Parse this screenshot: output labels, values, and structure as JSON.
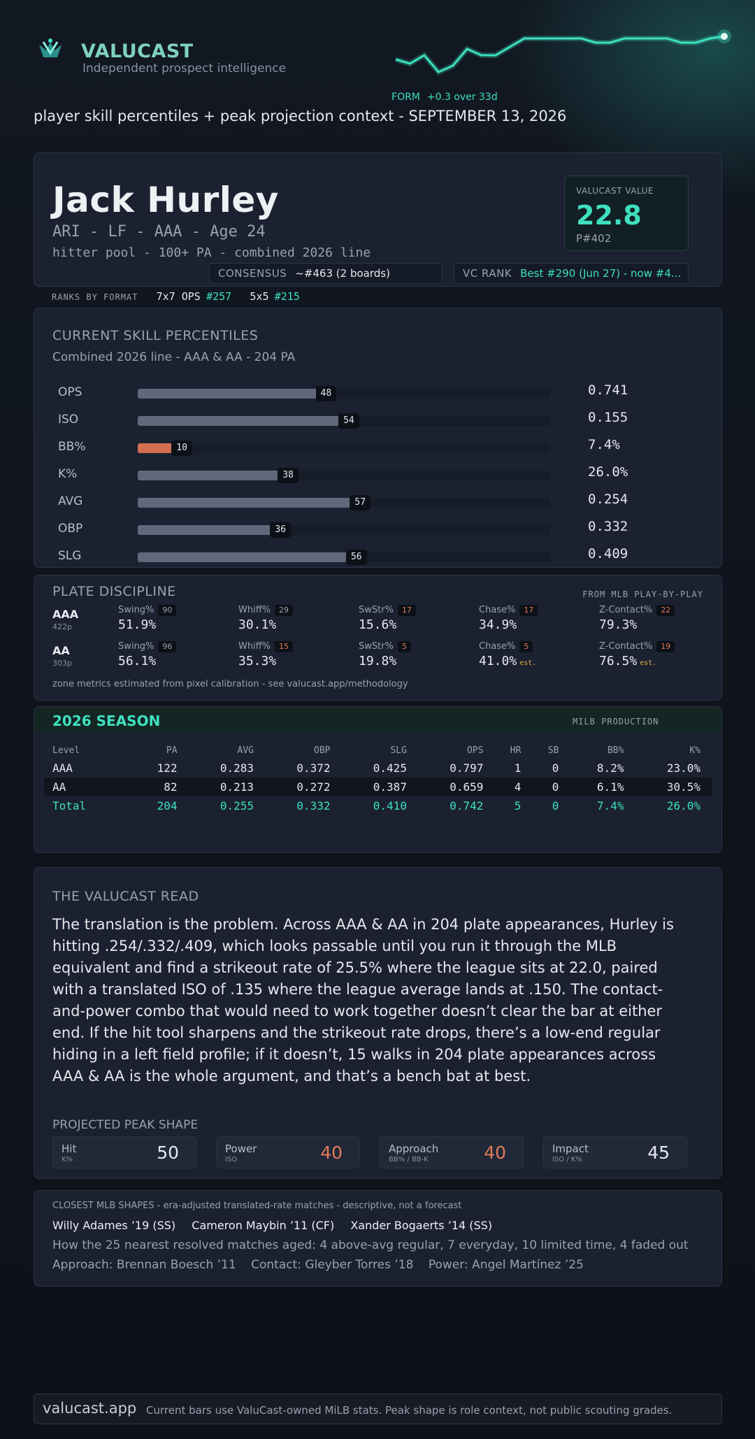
{
  "brand": {
    "name": "VALUCAST",
    "tagline": "Independent prospect intelligence"
  },
  "form": {
    "label": "FORM",
    "delta": "+0.3 over 33d",
    "trend": [
      0.45,
      0.35,
      0.55,
      0.15,
      0.3,
      0.7,
      0.55,
      0.55,
      0.75,
      0.95,
      0.95,
      0.95,
      0.95,
      0.95,
      0.85,
      0.85,
      0.95,
      0.95,
      0.95,
      0.95,
      0.85,
      0.85,
      0.95,
      1.0
    ]
  },
  "subtitle": "player skill percentiles + peak projection context - SEPTEMBER 13, 2026",
  "player": {
    "name": "Jack Hurley",
    "meta": "ARI - LF - AAA - Age 24",
    "pool": "hitter pool - 100+ PA - combined 2026 line",
    "value_label": "VALUCAST VALUE",
    "value": "22.8",
    "value_rank": "P#402",
    "consensus_label": "CONSENSUS",
    "consensus": "~#463 (2 boards)",
    "vcrank_label": "VC RANK",
    "vcrank": "Best #290 (Jun 27) - now #4..."
  },
  "ranks": {
    "label": "RANKS BY FORMAT",
    "f1_name": "7x7 OPS",
    "f1_rank": "#257",
    "f2_name": "5x5",
    "f2_rank": "#215"
  },
  "skills": {
    "title": "CURRENT SKILL PERCENTILES",
    "subtitle": "Combined 2026 line - AAA & AA - 204 PA",
    "rows": [
      {
        "label": "OPS",
        "pct": 48,
        "value": "0.741"
      },
      {
        "label": "ISO",
        "pct": 54,
        "value": "0.155"
      },
      {
        "label": "BB%",
        "pct": 10,
        "value": "7.4%"
      },
      {
        "label": "K%",
        "pct": 38,
        "value": "26.0%"
      },
      {
        "label": "AVG",
        "pct": 57,
        "value": "0.254"
      },
      {
        "label": "OBP",
        "pct": 36,
        "value": "0.332"
      },
      {
        "label": "SLG",
        "pct": 56,
        "value": "0.409"
      }
    ]
  },
  "plate": {
    "title": "PLATE DISCIPLINE",
    "source": "FROM MLB PLAY-BY-PLAY",
    "levels": [
      {
        "level": "AAA",
        "pitches": "422p",
        "metrics": [
          {
            "name": "Swing%",
            "pct": "90",
            "value": "51.9%",
            "bad": false,
            "est": ""
          },
          {
            "name": "Whiff%",
            "pct": "29",
            "value": "30.1%",
            "bad": false,
            "est": ""
          },
          {
            "name": "SwStr%",
            "pct": "17",
            "value": "15.6%",
            "bad": true,
            "est": ""
          },
          {
            "name": "Chase%",
            "pct": "17",
            "value": "34.9%",
            "bad": true,
            "est": ""
          },
          {
            "name": "Z-Contact%",
            "pct": "22",
            "value": "79.3%",
            "bad": true,
            "est": ""
          }
        ]
      },
      {
        "level": "AA",
        "pitches": "303p",
        "metrics": [
          {
            "name": "Swing%",
            "pct": "96",
            "value": "56.1%",
            "bad": false,
            "est": ""
          },
          {
            "name": "Whiff%",
            "pct": "15",
            "value": "35.3%",
            "bad": true,
            "est": ""
          },
          {
            "name": "SwStr%",
            "pct": "5",
            "value": "19.8%",
            "bad": true,
            "est": ""
          },
          {
            "name": "Chase%",
            "pct": "5",
            "value": "41.0%",
            "bad": true,
            "est": "est."
          },
          {
            "name": "Z-Contact%",
            "pct": "19",
            "value": "76.5%",
            "bad": true,
            "est": "est."
          }
        ]
      }
    ],
    "note": "zone metrics estimated from pixel calibration - see valucast.app/methodology"
  },
  "season": {
    "title": "2026 SEASON",
    "tag": "MILB PRODUCTION",
    "headers": [
      "Level",
      "PA",
      "AVG",
      "OBP",
      "SLG",
      "OPS",
      "HR",
      "SB",
      "BB%",
      "K%"
    ],
    "rows": [
      [
        "AAA",
        "122",
        "0.283",
        "0.372",
        "0.425",
        "0.797",
        "1",
        "0",
        "8.2%",
        "23.0%"
      ],
      [
        "AA",
        "82",
        "0.213",
        "0.272",
        "0.387",
        "0.659",
        "4",
        "0",
        "6.1%",
        "30.5%"
      ],
      [
        "Total",
        "204",
        "0.255",
        "0.332",
        "0.410",
        "0.742",
        "5",
        "0",
        "7.4%",
        "26.0%"
      ]
    ]
  },
  "read": {
    "title": "THE VALUCAST READ",
    "text": "The translation is the problem. Across AAA & AA in 204 plate appearances, Hurley is hitting .254/.332/.409, which looks passable until you run it through the MLB equivalent and find a strikeout rate of 25.5% where the league sits at 22.0, paired with a translated ISO of .135 where the league average lands at .150. The contact-and-power combo that would need to work together doesn’t clear the bar at either end. If the hit tool sharpens and the strikeout rate drops, there’s a low-end regular hiding in a left field profile; if it doesn’t, 15 walks in 204 plate appearances across AAA & AA is the whole argument, and that’s a bench bat at best.",
    "peak_title": "PROJECTED PEAK SHAPE",
    "peak": [
      {
        "name": "Hit",
        "sub": "K%",
        "grade": "50",
        "low": false
      },
      {
        "name": "Power",
        "sub": "ISO",
        "grade": "40",
        "low": true
      },
      {
        "name": "Approach",
        "sub": "BB% / BB-K",
        "grade": "40",
        "low": true
      },
      {
        "name": "Impact",
        "sub": "ISO / K%",
        "grade": "45",
        "low": false
      }
    ]
  },
  "closest": {
    "title": "CLOSEST MLB SHAPES - era-adjusted translated-rate matches - descriptive, not a forecast",
    "names": [
      "Willy Adames ’19 (SS)",
      "Cameron Maybin ’11 (CF)",
      "Xander Bogaerts ’14 (SS)"
    ],
    "aged": "How the 25 nearest resolved matches aged: 4 above-avg regular, 7 everyday, 10 limited time, 4 faded out",
    "tools": [
      "Approach: Brennan Boesch ’11",
      "Contact: Gleyber Torres ’18",
      "Power: Angel Martínez ’25"
    ]
  },
  "footer": {
    "site": "valucast.app",
    "note": "Current bars use ValuCast-owned MiLB stats. Peak shape is role context, not public scouting grades."
  },
  "colors": {
    "accent": "#3ee0bf",
    "warn": "#e27a5a",
    "bar": "#606879",
    "bg": "#121822"
  }
}
